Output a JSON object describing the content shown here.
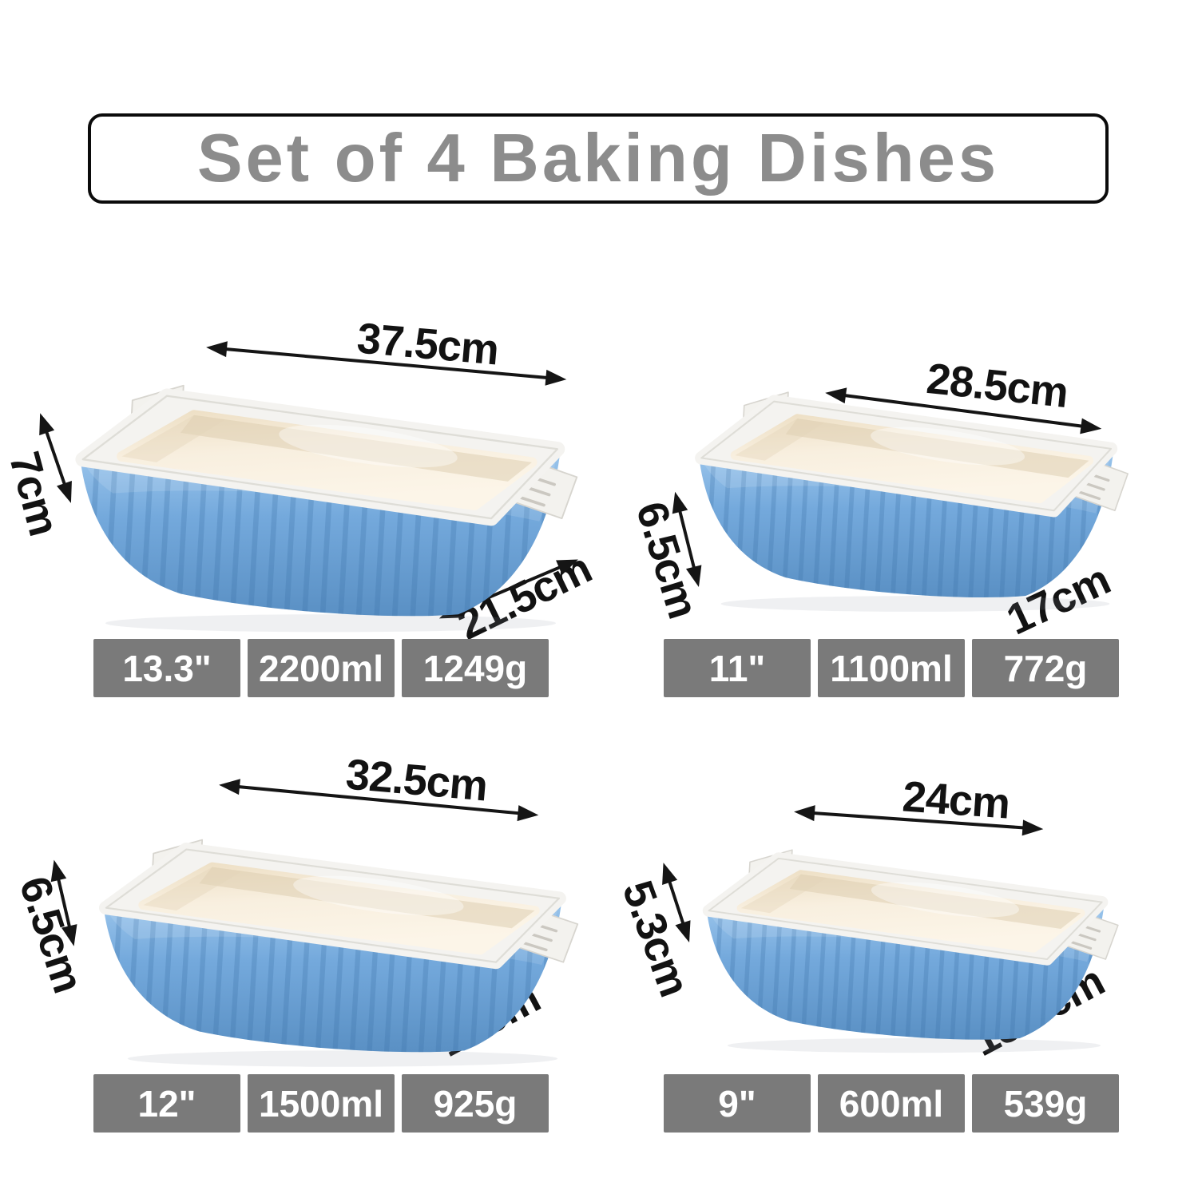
{
  "title": "Set of 4 Baking Dishes",
  "colors": {
    "dish_blue": "#74a9dc",
    "dish_interior_cream": "#f8efdf",
    "rim_white": "#f4f3f0",
    "spec_bar_gray": "#7a7a7a",
    "title_gray": "#8c8c8c",
    "dimension_text": "#121212"
  },
  "dishes": [
    {
      "position": "top-left",
      "width_label": "37.5cm",
      "height_label": "7cm",
      "depth_label": "21.5cm",
      "size_inches": "13.3\"",
      "capacity": "2200ml",
      "weight": "1249g"
    },
    {
      "position": "top-right",
      "width_label": "28.5cm",
      "height_label": "6.5cm",
      "depth_label": "17cm",
      "size_inches": "11\"",
      "capacity": "1100ml",
      "weight": "772g"
    },
    {
      "position": "bottom-left",
      "width_label": "32.5cm",
      "height_label": "6.5cm",
      "depth_label": "19cm",
      "size_inches": "12\"",
      "capacity": "1500ml",
      "weight": "925g"
    },
    {
      "position": "bottom-right",
      "width_label": "24cm",
      "height_label": "5.3cm",
      "depth_label": "13.5cm",
      "size_inches": "9\"",
      "capacity": "600ml",
      "weight": "539g"
    }
  ]
}
